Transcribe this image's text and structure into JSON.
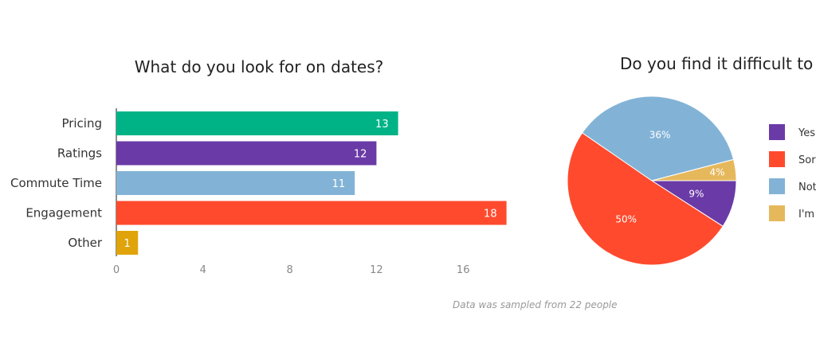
{
  "chart_data": [
    {
      "type": "bar",
      "orientation": "horizontal",
      "title": "What do you look for on dates?",
      "categories": [
        "Pricing",
        "Ratings",
        "Commute Time",
        "Engagement",
        "Other"
      ],
      "values": [
        13,
        12,
        11,
        18,
        1
      ],
      "colors": [
        "#00b386",
        "#6a3aa6",
        "#82b3d6",
        "#ff4a2e",
        "#e0a40a"
      ],
      "xticks": [
        0,
        4,
        8,
        12,
        16
      ],
      "xlim": [
        0,
        18
      ],
      "grid": false
    },
    {
      "type": "pie",
      "title": "Do you find it difficult to de",
      "slices": [
        {
          "legend": "Yes",
          "value": 9,
          "label": "9%",
          "color": "#6a3aa6"
        },
        {
          "legend": "Sor",
          "value": 50,
          "label": "50%",
          "color": "#ff4a2e"
        },
        {
          "legend": "Not",
          "value": 36,
          "label": "36%",
          "color": "#82b3d6"
        },
        {
          "legend": "I'm",
          "value": 4,
          "label": "4%",
          "color": "#e6b85c"
        }
      ],
      "legend_position": "right"
    }
  ],
  "footnote": "Data was sampled from 22 people"
}
